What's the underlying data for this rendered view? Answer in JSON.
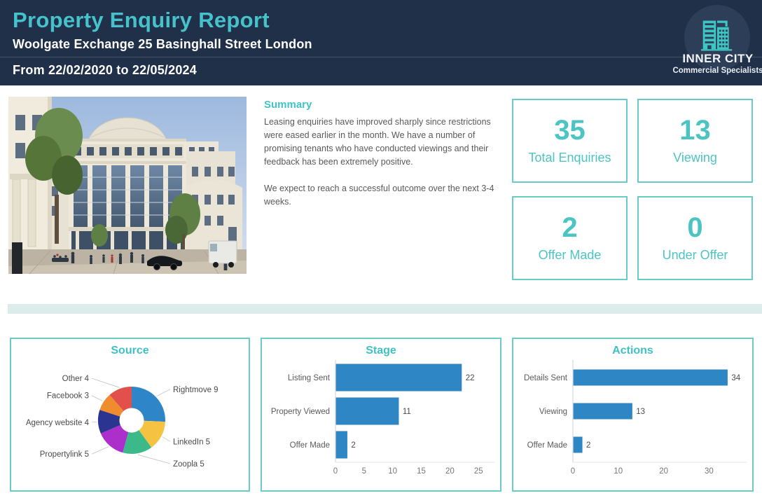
{
  "header": {
    "title": "Property Enquiry Report",
    "subtitle": "Woolgate Exchange 25 Basinghall Street London",
    "date_range": "From 22/02/2020 to 22/05/2024",
    "logo": {
      "name": "INNER CITY",
      "tagline": "Commercial Specialists",
      "icon": "buildings-icon"
    }
  },
  "summary": {
    "heading": "Summary",
    "paragraph_1": "Leasing enquiries have improved sharply since restrictions were eased earlier in the month. We have a number of promising tenants who have conducted viewings and their feedback has been extremely positive.",
    "paragraph_2": "We expect to reach a successful outcome over the next 3-4 weeks."
  },
  "kpis": [
    {
      "value": "35",
      "label": "Total Enquiries"
    },
    {
      "value": "13",
      "label": "Viewing"
    },
    {
      "value": "2",
      "label": "Offer Made"
    },
    {
      "value": "0",
      "label": "Under Offer"
    }
  ],
  "colors": {
    "header_navy": "#213049",
    "accent_teal": "#45c2cc",
    "card_teal": "#4cc4c3",
    "panel_border_teal": "#6ccbc7",
    "divider_band": "#dcecea",
    "bar_blue": "#2e86c5",
    "text_gray": "#595959"
  },
  "chart_data": [
    {
      "id": "source",
      "type": "pie",
      "style": "donut",
      "title": "Source",
      "start_angle_deg": 0,
      "clockwise": true,
      "label_format": "{label} {value}",
      "slices": [
        {
          "label": "Rightmove",
          "value": 9,
          "color": "#2e86c8"
        },
        {
          "label": "LinkedIn",
          "value": 5,
          "color": "#f5c242"
        },
        {
          "label": "Zoopla",
          "value": 5,
          "color": "#3cb988"
        },
        {
          "label": "Propertylink",
          "value": 5,
          "color": "#ac2fcb"
        },
        {
          "label": "Agency website",
          "value": 4,
          "color": "#2c3492"
        },
        {
          "label": "Facebook",
          "value": 3,
          "color": "#ef8d2e"
        },
        {
          "label": "Other",
          "value": 4,
          "color": "#e2504c"
        }
      ],
      "total": 35
    },
    {
      "id": "stage",
      "type": "bar",
      "orientation": "horizontal",
      "title": "Stage",
      "categories": [
        "Listing Sent",
        "Property Viewed",
        "Offer Made"
      ],
      "values": [
        22,
        11,
        2
      ],
      "bar_color": "#2e86c5",
      "xticks": [
        0,
        5,
        10,
        15,
        20,
        25
      ],
      "xmax": 27.3,
      "value_labels": true,
      "grid": false
    },
    {
      "id": "actions",
      "type": "bar",
      "orientation": "horizontal",
      "title": "Actions",
      "categories": [
        "Details Sent",
        "Viewing",
        "Offer Made"
      ],
      "values": [
        34,
        13,
        2
      ],
      "bar_color": "#2e86c5",
      "xticks": [
        0,
        10,
        20,
        30
      ],
      "xmax": 37.5,
      "value_labels": true,
      "grid": false
    }
  ]
}
